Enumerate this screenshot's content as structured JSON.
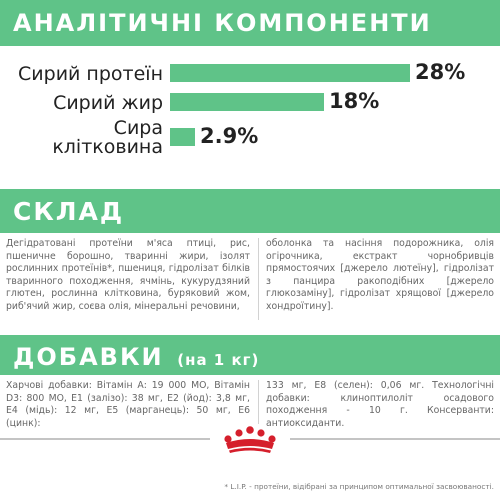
{
  "header": {
    "title": "АНАЛІТИЧНІ КОМПОНЕНТИ"
  },
  "chart_data": {
    "type": "bar",
    "categories": [
      "Сирий протеїн",
      "Сирий жир",
      "Сира клітковина"
    ],
    "values": [
      28,
      18,
      2.9
    ],
    "value_labels": [
      "28%",
      "18%",
      "2.9%"
    ],
    "label_lines": [
      [
        "Сирий протеїн"
      ],
      [
        "Сирий жир"
      ],
      [
        "Сира",
        "клітковина"
      ]
    ],
    "xlim": [
      0,
      28
    ]
  },
  "composition": {
    "title": "СКЛАД",
    "col1": "Дегідратовані протеїни м'яса птиці, рис, пшеничне борошно, тваринні жири, ізолят рослинних протеїнів*, пшениця, гідролізат білків тваринного походження, ячмінь, кукурудзяний глютен, рослинна клітковина, буряковий жом, риб'ячий жир, соєва олія, мінеральні речовини,",
    "col2": "оболонка та насіння подорожника, олія огірочника, екстракт чорнобривців прямостоячих [джерело лютеїну], гідролізат з панцира ракоподібних [джерело глюкозаміну], гідролізат хрящової [джерело хондроїтину]."
  },
  "additives": {
    "title": "ДОБАВКИ",
    "subtitle": "(на 1 кг)",
    "col1": "Харчові добавки: Вітамін А: 19 000 МО, Вітамін D3: 800 МО, Е1 (залізо): 38 мг, Е2 (йод): 3,8 мг, Е4 (мідь): 12 мг, Е5 (марганець): 50 мг, Е6 (цинк):",
    "col2": "133 мг, Е8 (селен): 0,06 мг. Технологічні добавки: клиноптилоліт осадового походження - 10 г. Консерванти: антиоксиданти."
  },
  "footnote": "* L.I.P. - протеїни, відібрані за принципом оптимальної засвоюваності.",
  "colors": {
    "accent": "#5fc388",
    "brand_red": "#d51f2c"
  },
  "logo": {
    "name": "crown-logo-icon"
  }
}
